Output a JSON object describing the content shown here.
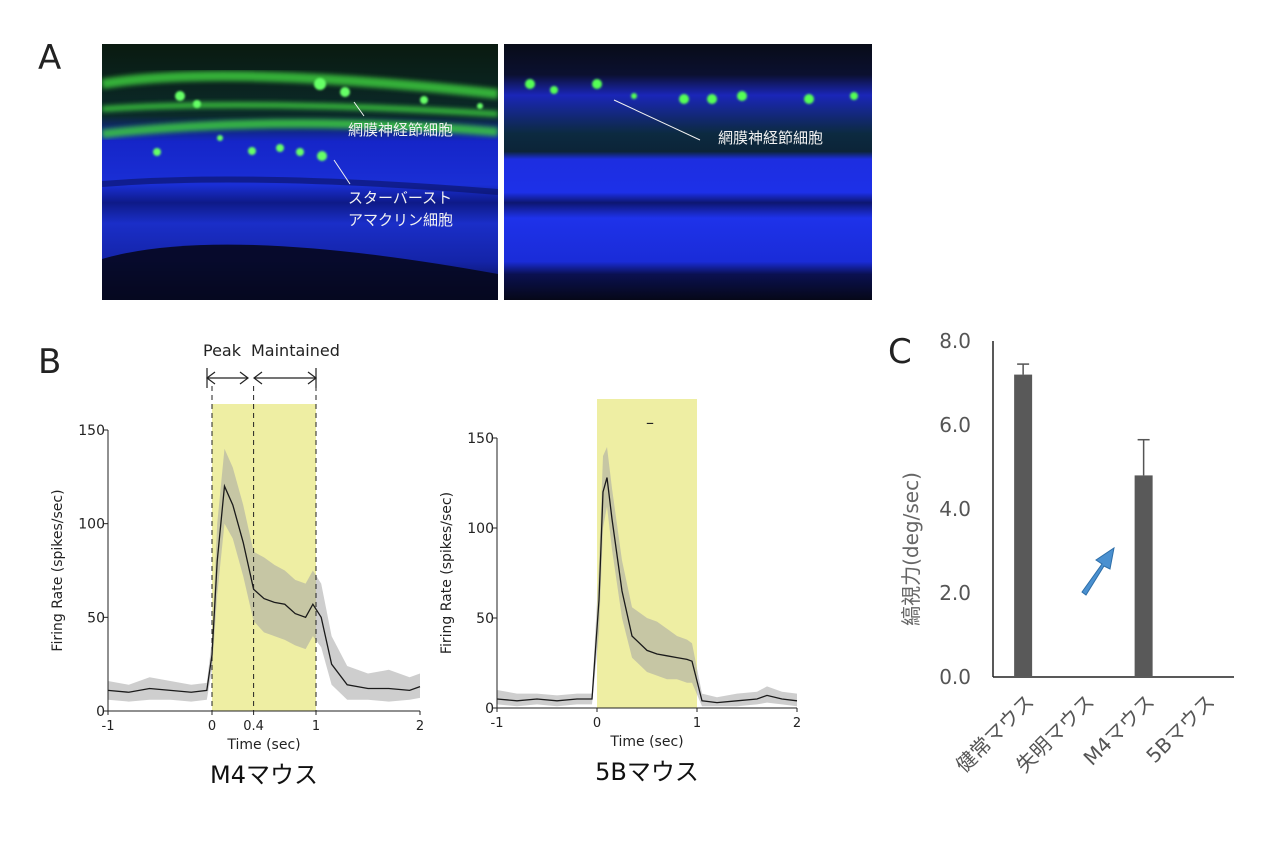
{
  "panels": {
    "A": {
      "letter": "A",
      "left_image": {
        "label_rgc": "網膜神経節細胞",
        "label_sac_line1": "スターバースト",
        "label_sac_line2": "アマクリン細胞"
      },
      "right_image": {
        "label_rgc": "網膜神経節細胞"
      }
    },
    "B": {
      "letter": "B",
      "annot_peak": "Peak",
      "annot_maintained": "Maintained",
      "left_title": "M4マウス",
      "right_title": "5Bマウス",
      "dash_mark": "–"
    },
    "C": {
      "letter": "C"
    }
  },
  "chart_data": [
    {
      "type": "line",
      "title": "M4マウス",
      "xlabel": "Time (sec)",
      "ylabel": "Firing Rate (spikes/sec)",
      "xlim": [
        -1,
        2
      ],
      "ylim": [
        0,
        150
      ],
      "xticks": [
        "-1",
        "0",
        "0.4",
        "1",
        "2"
      ],
      "xtick_values": [
        -1,
        0,
        0.4,
        1,
        2
      ],
      "yticks": [
        "0",
        "50",
        "100",
        "150"
      ],
      "ytick_values": [
        0,
        50,
        100,
        150
      ],
      "stimulus_window": [
        0,
        1
      ],
      "dashed_lines": [
        0,
        0.4,
        1
      ],
      "shading": "mean ± error (gray band)",
      "x": [
        -1,
        -0.8,
        -0.6,
        -0.4,
        -0.2,
        -0.05,
        0,
        0.05,
        0.12,
        0.2,
        0.3,
        0.4,
        0.5,
        0.6,
        0.7,
        0.8,
        0.9,
        0.97,
        1.05,
        1.15,
        1.3,
        1.5,
        1.7,
        1.9,
        2
      ],
      "values": [
        11,
        10,
        12,
        11,
        10,
        11,
        30,
        80,
        120,
        110,
        90,
        65,
        60,
        58,
        57,
        52,
        50,
        57,
        50,
        25,
        14,
        12,
        12,
        11,
        13
      ],
      "upper": [
        16,
        14,
        18,
        16,
        14,
        15,
        38,
        100,
        140,
        130,
        110,
        85,
        82,
        78,
        75,
        70,
        68,
        75,
        68,
        40,
        24,
        20,
        22,
        18,
        20
      ],
      "lower": [
        6,
        5,
        6,
        6,
        5,
        6,
        22,
        62,
        100,
        92,
        72,
        48,
        42,
        40,
        38,
        35,
        33,
        40,
        34,
        14,
        6,
        6,
        5,
        6,
        7
      ]
    },
    {
      "type": "line",
      "title": "5Bマウス",
      "xlabel": "Time (sec)",
      "ylabel": "Firing Rate (spikes/sec)",
      "xlim": [
        -1,
        2
      ],
      "ylim": [
        0,
        150
      ],
      "xticks": [
        "-1",
        "0",
        "1",
        "2"
      ],
      "xtick_values": [
        -1,
        0,
        1,
        2
      ],
      "yticks": [
        "0",
        "50",
        "100",
        "150"
      ],
      "ytick_values": [
        0,
        50,
        100,
        150
      ],
      "stimulus_window": [
        0,
        1
      ],
      "shading": "mean ± error (gray band)",
      "x": [
        -1,
        -0.8,
        -0.6,
        -0.4,
        -0.2,
        -0.05,
        0.02,
        0.06,
        0.1,
        0.15,
        0.25,
        0.35,
        0.5,
        0.6,
        0.7,
        0.8,
        0.9,
        0.95,
        1.05,
        1.2,
        1.4,
        1.6,
        1.7,
        1.85,
        2
      ],
      "values": [
        5,
        4,
        5,
        4,
        5,
        5,
        60,
        120,
        128,
        105,
        65,
        40,
        32,
        30,
        29,
        28,
        27,
        26,
        4,
        3,
        4,
        5,
        7,
        5,
        4
      ],
      "upper": [
        10,
        8,
        8,
        7,
        8,
        8,
        80,
        140,
        145,
        122,
        82,
        56,
        50,
        48,
        44,
        40,
        38,
        36,
        8,
        6,
        8,
        9,
        12,
        9,
        8
      ],
      "lower": [
        2,
        1,
        2,
        1,
        2,
        2,
        42,
        100,
        112,
        88,
        50,
        28,
        20,
        18,
        16,
        16,
        14,
        14,
        1,
        1,
        1,
        2,
        3,
        2,
        1
      ]
    },
    {
      "type": "bar",
      "ylabel": "縞視力(deg/sec)",
      "categories": [
        "健常マウス",
        "失明マウス",
        "M4マウス",
        "5Bマウス"
      ],
      "values": [
        7.2,
        0,
        4.8,
        0
      ],
      "errors": [
        0.25,
        0,
        0.85,
        0
      ],
      "ylim": [
        0,
        8
      ],
      "yticks": [
        "0.0",
        "2.0",
        "4.0",
        "6.0",
        "8.0"
      ],
      "ytick_values": [
        0,
        2,
        4,
        6,
        8
      ],
      "bar_color": "#595959",
      "annotation": "blue arrow pointing up toward M4マウス bar",
      "arrow_color": "#4a90d0"
    }
  ],
  "colors": {
    "stimulus_fill": "#ecec99",
    "band_fill": "#a6a6a6",
    "line": "#1a1a1a",
    "micro_blue": "#1a2fd6",
    "micro_green": "#33ee33"
  }
}
